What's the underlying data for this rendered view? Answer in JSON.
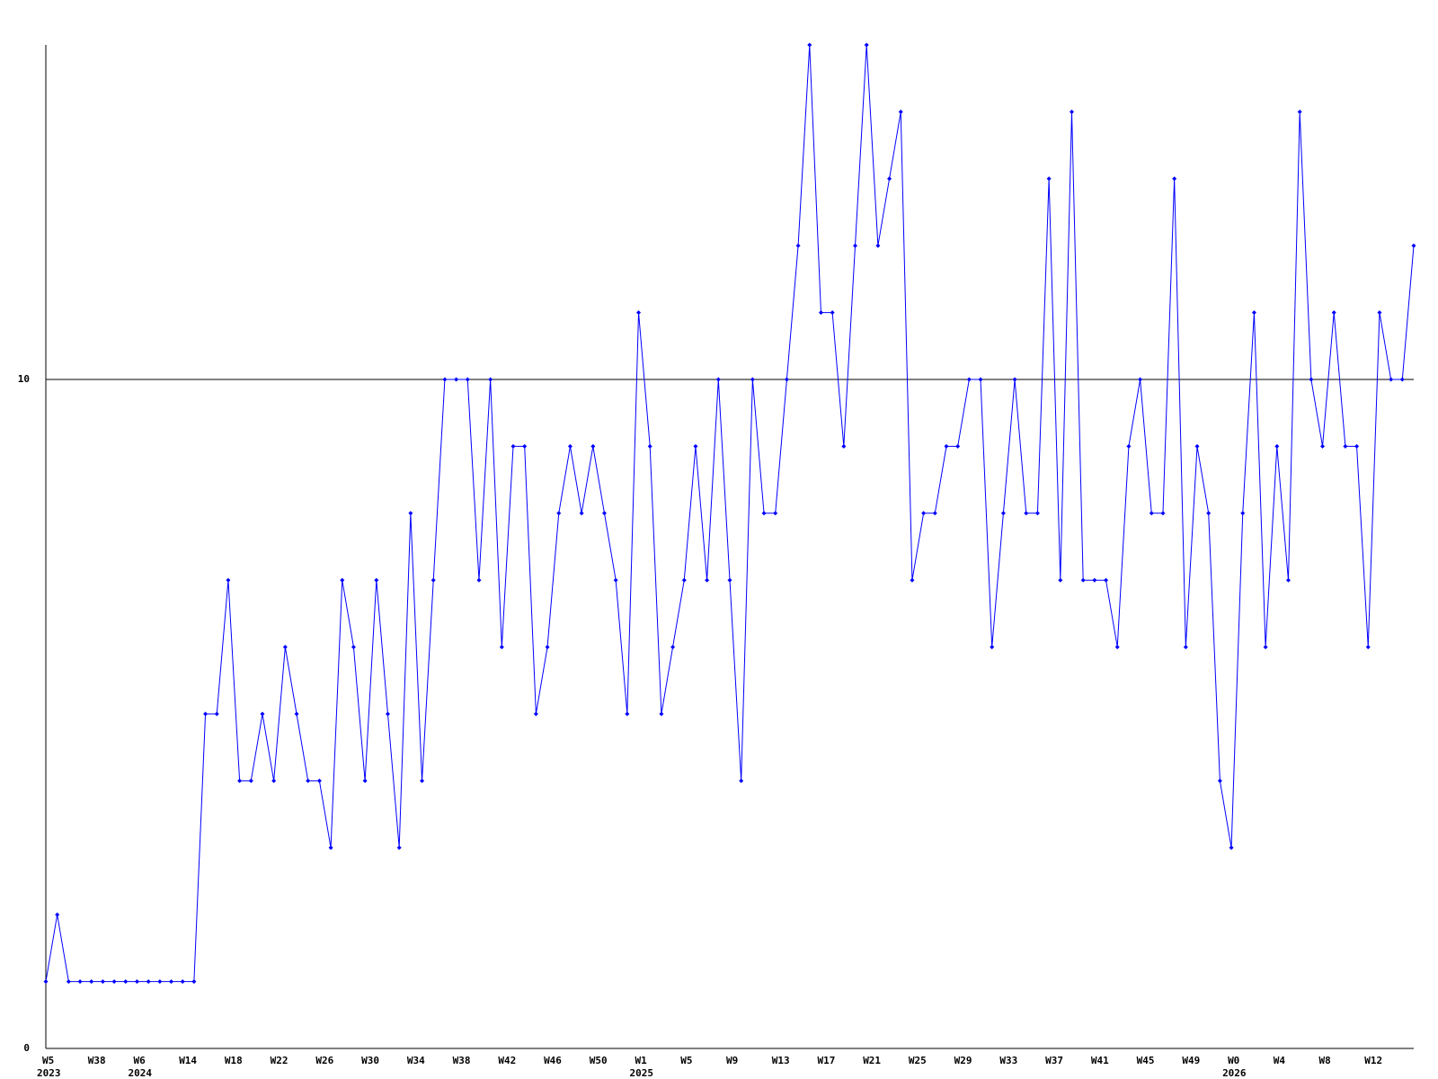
{
  "chart_data": {
    "type": "line",
    "categories": [
      "W5",
      null,
      null,
      null,
      "W38",
      null,
      null,
      null,
      "W6",
      null,
      null,
      null,
      "W14",
      null,
      null,
      null,
      "W18",
      null,
      null,
      null,
      "W22",
      null,
      null,
      null,
      "W26",
      null,
      null,
      null,
      "W30",
      null,
      null,
      null,
      "W34",
      null,
      null,
      null,
      "W38",
      null,
      null,
      null,
      "W42",
      null,
      null,
      null,
      "W46",
      null,
      null,
      null,
      "W50",
      null,
      null,
      null,
      "W1",
      null,
      null,
      null,
      "W5",
      null,
      null,
      null,
      "W9",
      null,
      null,
      null,
      "W13",
      null,
      null,
      null,
      "W17",
      null,
      null,
      null,
      "W21",
      null,
      null,
      null,
      "W25",
      null,
      null,
      null,
      "W29",
      null,
      null,
      null,
      "W33",
      null,
      null,
      null,
      "W37",
      null,
      null,
      null,
      "W41",
      null,
      null,
      null,
      "W45",
      null,
      null,
      null,
      "W49",
      null,
      null,
      null,
      "W0",
      null,
      null,
      null,
      "W4",
      null,
      null,
      null,
      "W8",
      null,
      null,
      null,
      "W12",
      null,
      null,
      null,
      null
    ],
    "year_labels": [
      "2023",
      null,
      null,
      null,
      null,
      null,
      null,
      null,
      "2024",
      null,
      null,
      null,
      null,
      null,
      null,
      null,
      null,
      null,
      null,
      null,
      null,
      null,
      null,
      null,
      null,
      null,
      null,
      null,
      null,
      null,
      null,
      null,
      null,
      null,
      null,
      null,
      null,
      null,
      null,
      null,
      null,
      null,
      null,
      null,
      null,
      null,
      null,
      null,
      null,
      null,
      null,
      null,
      "2025",
      null,
      null,
      null,
      null,
      null,
      null,
      null,
      null,
      null,
      null,
      null,
      null,
      null,
      null,
      null,
      null,
      null,
      null,
      null,
      null,
      null,
      null,
      null,
      null,
      null,
      null,
      null,
      null,
      null,
      null,
      null,
      null,
      null,
      null,
      null,
      null,
      null,
      null,
      null,
      null,
      null,
      null,
      null,
      null,
      null,
      null,
      null,
      null,
      null,
      null,
      null,
      "2026",
      null,
      null,
      null,
      null,
      null,
      null,
      null,
      null,
      null,
      null,
      null,
      null,
      null,
      null,
      null,
      null
    ],
    "series": [
      {
        "color": "#0000ff",
        "values": [
          1,
          2,
          1,
          1,
          1,
          1,
          1,
          1,
          1,
          1,
          1,
          1,
          1,
          1,
          5,
          5,
          7,
          4,
          4,
          5,
          4,
          6,
          5,
          4,
          4,
          3,
          7,
          6,
          4,
          7,
          5,
          3,
          8,
          4,
          7,
          10,
          10,
          10,
          7,
          10,
          6,
          9,
          9,
          5,
          6,
          8,
          9,
          8,
          9,
          8,
          7,
          5,
          11,
          9,
          5,
          6,
          7,
          9,
          7,
          10,
          7,
          4,
          10,
          8,
          8,
          10,
          12,
          15,
          11,
          11,
          9,
          12,
          15,
          12,
          13,
          14,
          7,
          8,
          8,
          9,
          9,
          10,
          10,
          6,
          8,
          10,
          8,
          8,
          13,
          7,
          14,
          7,
          7,
          7,
          6,
          9,
          10,
          8,
          8,
          13,
          6,
          9,
          8,
          4,
          3,
          8,
          11,
          6,
          9,
          7,
          14,
          10,
          9,
          11,
          9,
          9,
          6,
          11,
          10,
          10,
          12
        ]
      }
    ],
    "ylim": [
      0,
      15
    ],
    "yticks": [
      0,
      10
    ],
    "grid": true
  }
}
